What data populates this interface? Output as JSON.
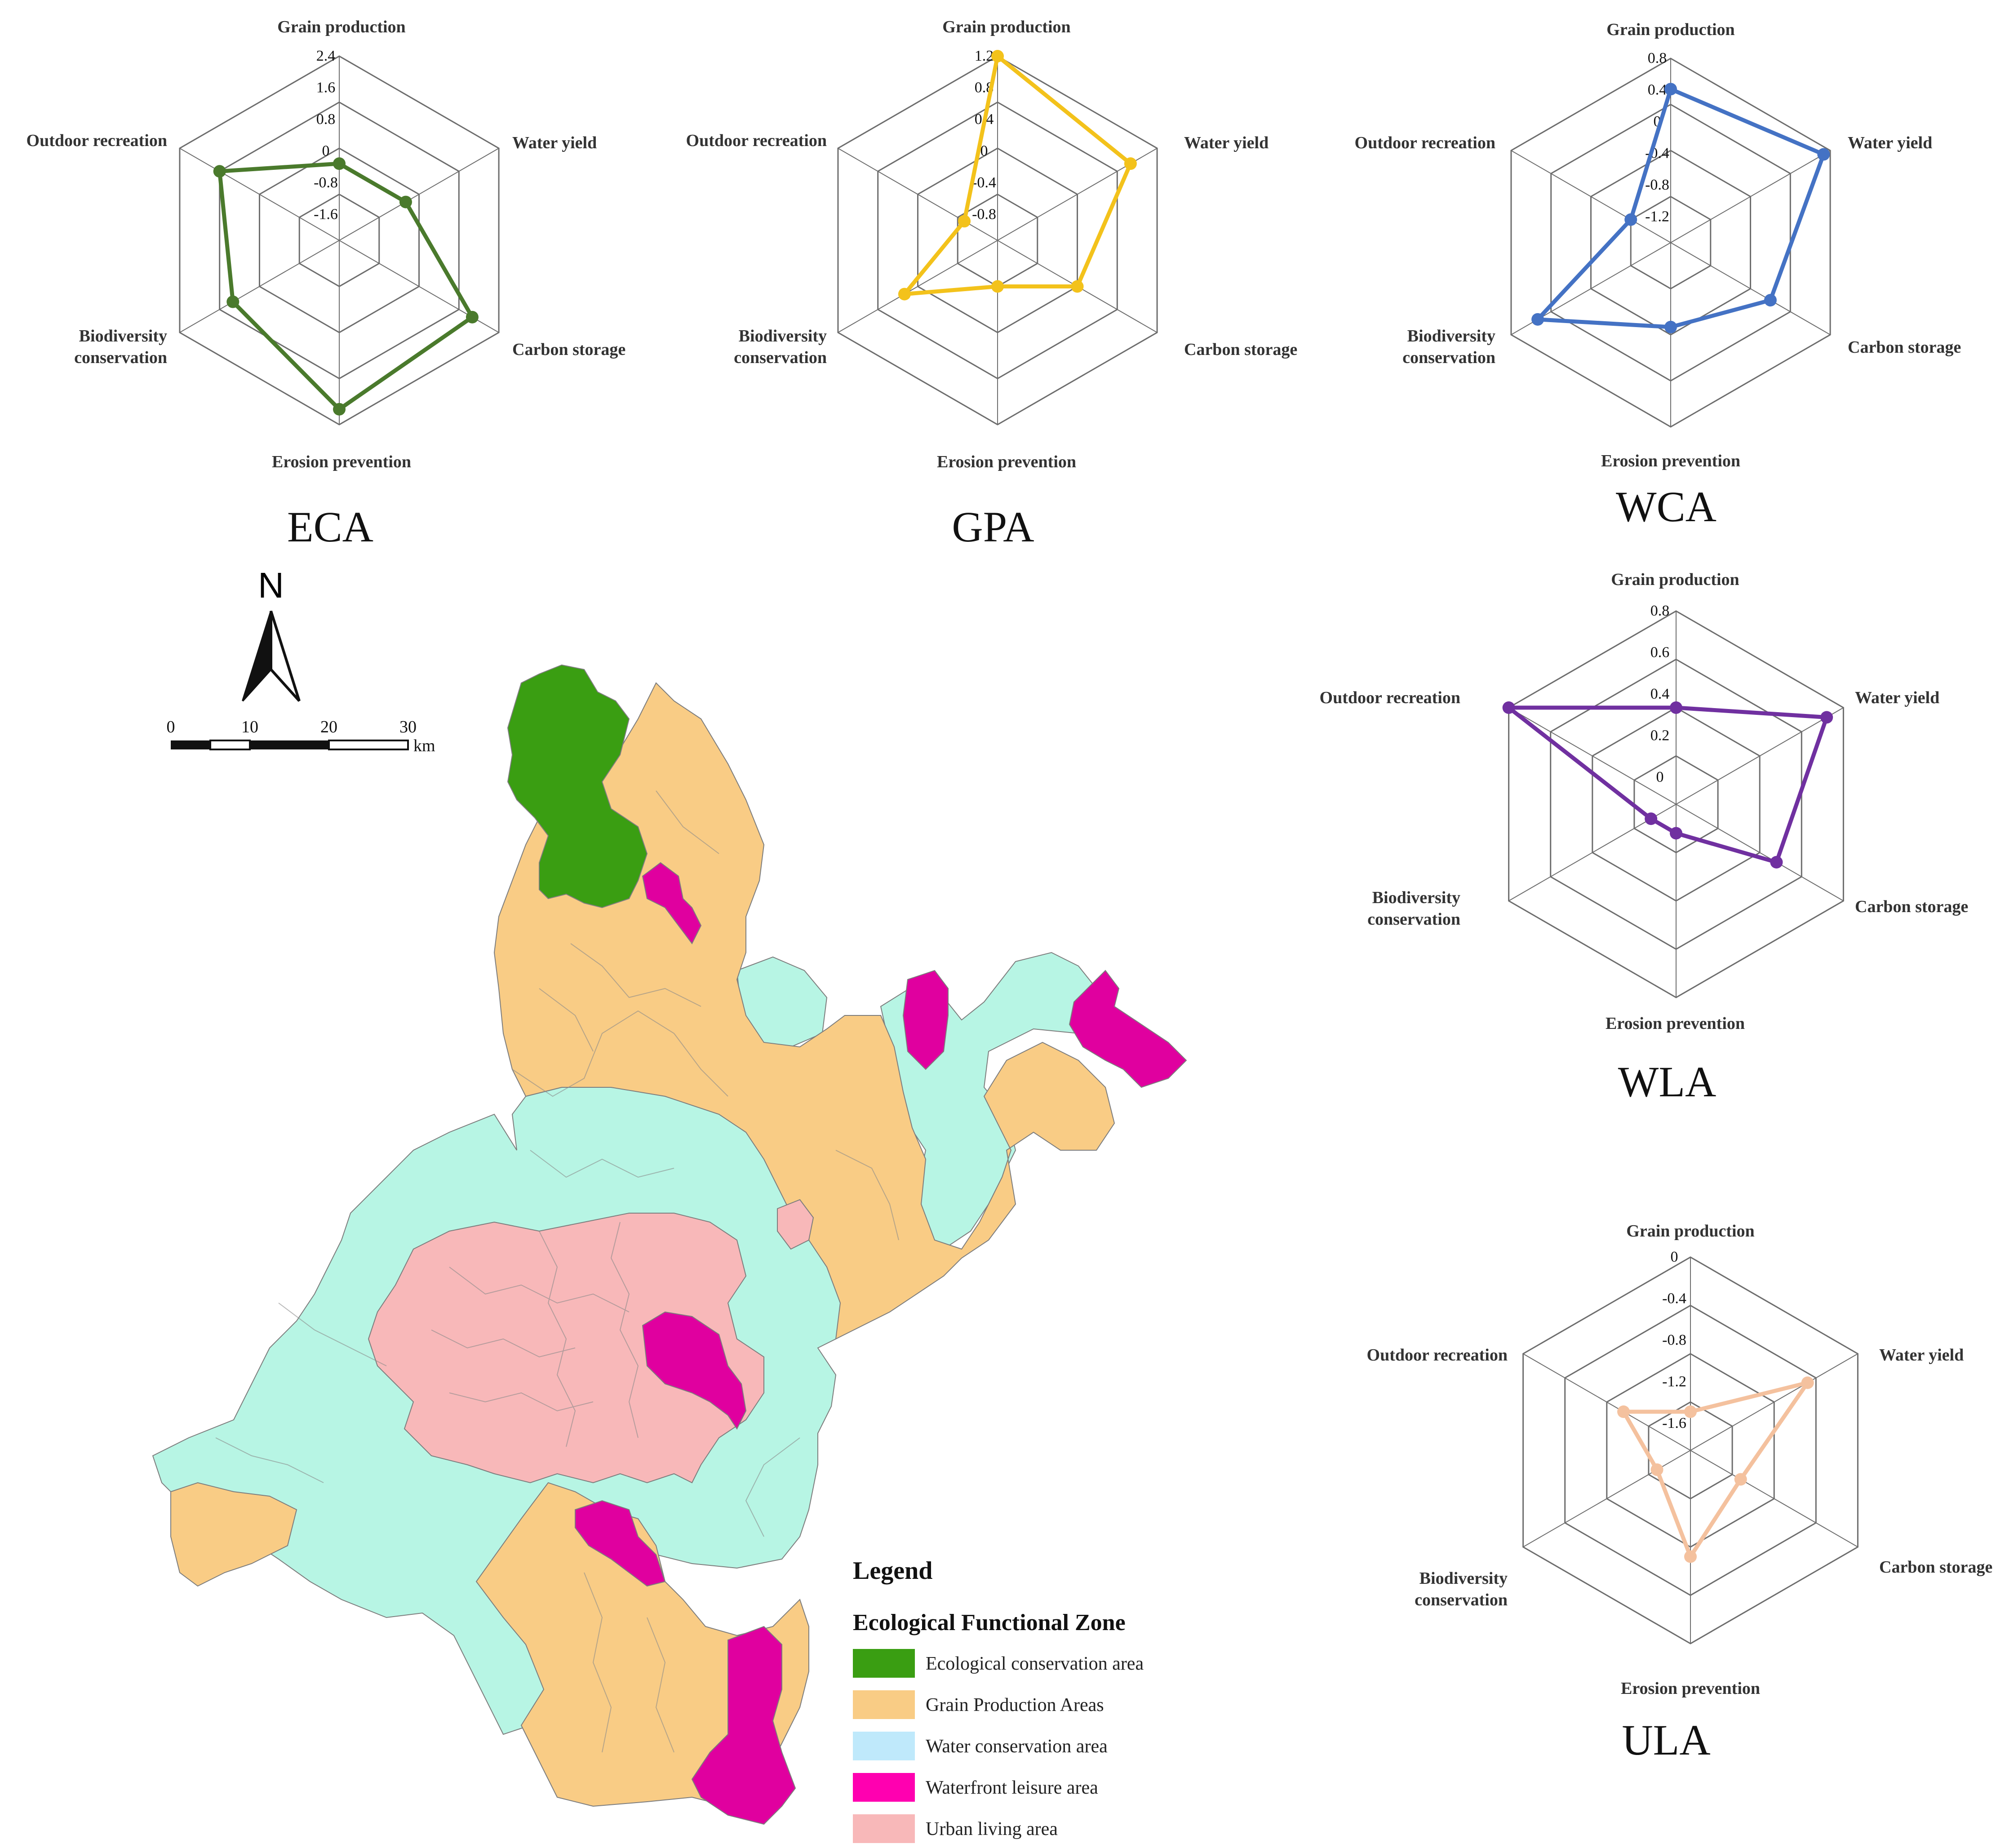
{
  "radar_axes": [
    "Grain production",
    "Water yield",
    "Carbon storage",
    "Erosion prevention",
    "Biodiversity",
    "Outdoor recreation"
  ],
  "chart_data": [
    {
      "type": "radar",
      "title": "ECA",
      "color": "#4a7a2c",
      "axes": [
        "Grain production",
        "Water yield",
        "Carbon storage",
        "Erosion prevention",
        "Biodiversity conservation",
        "Outdoor recreation"
      ],
      "ticks": [
        "2.4",
        "1.6",
        "0.8",
        "0",
        "-0.8",
        "-1.6"
      ],
      "range": [
        -2.4,
        2.4
      ],
      "values": [
        -0.4,
        -0.4,
        1.6,
        2.0,
        0.8,
        1.2
      ]
    },
    {
      "type": "radar",
      "title": "GPA",
      "color": "#f3c21b",
      "axes": [
        "Grain production",
        "Water yield",
        "Carbon storage",
        "Erosion prevention",
        "Biodiversity conservation",
        "Outdoor recreation"
      ],
      "ticks": [
        "1.2",
        "0.8",
        "0.4",
        "0",
        "-0.4",
        "-0.8"
      ],
      "range": [
        -1.2,
        1.2
      ],
      "values": [
        1.2,
        0.8,
        0.0,
        -0.6,
        0.2,
        -0.7
      ]
    },
    {
      "type": "radar",
      "title": "WCA",
      "color": "#4472c4",
      "axes": [
        "Grain production",
        "Water yield",
        "Carbon storage",
        "Erosion prevention",
        "Biodiversity conservation",
        "Outdoor recreation"
      ],
      "ticks": [
        "0.8",
        "0.4",
        "0",
        "-0.4",
        "-0.8",
        "-1.2"
      ],
      "range": [
        -1.6,
        0.8
      ],
      "values": [
        0.4,
        0.7,
        -0.1,
        -0.5,
        0.4,
        -1.0
      ]
    },
    {
      "type": "radar",
      "title": "WLA",
      "color": "#7030a0",
      "axes": [
        "Grain production",
        "Water yield",
        "Carbon storage",
        "Erosion prevention",
        "Biodiversity conservation",
        "Outdoor recreation"
      ],
      "ticks": [
        "0.8",
        "0.6",
        "0.4",
        "0.2",
        "0"
      ],
      "range": [
        -0.2,
        0.8
      ],
      "values": [
        0.3,
        0.7,
        0.4,
        -0.05,
        -0.05,
        0.8
      ]
    },
    {
      "type": "radar",
      "title": "ULA",
      "color": "#f4c19e",
      "axes": [
        "Grain production",
        "Water yield",
        "Carbon storage",
        "Erosion prevention",
        "Biodiversity conservation",
        "Outdoor recreation"
      ],
      "ticks": [
        "0",
        "-0.4",
        "-0.8",
        "-1.2",
        "-1.6"
      ],
      "range": [
        -2.0,
        0.0
      ],
      "values": [
        -1.6,
        -0.6,
        -1.4,
        -0.9,
        -1.6,
        -1.2
      ]
    }
  ],
  "map": {
    "north_label": "N",
    "scale": {
      "ticks": [
        "0",
        "10",
        "20",
        "30"
      ],
      "unit": "km"
    },
    "colors": {
      "eca": "#3a9e12",
      "gpa": "#f9cc85",
      "wca": "#b7f5e4",
      "wla": "#e0009f",
      "ula": "#f8b8b9",
      "legend_wca": "#bfe9fb",
      "legend_wla": "#ff00b0"
    },
    "legend": {
      "title": "Legend",
      "subtitle": "Ecological Functional Zone",
      "items": [
        {
          "label": "Ecological conservation area",
          "key": "eca"
        },
        {
          "label": "Grain Production Areas",
          "key": "gpa"
        },
        {
          "label": "Water conservation area",
          "key": "legend_wca"
        },
        {
          "label": "Waterfront leisure area",
          "key": "legend_wla"
        },
        {
          "label": "Urban living area",
          "key": "ula"
        }
      ]
    }
  }
}
